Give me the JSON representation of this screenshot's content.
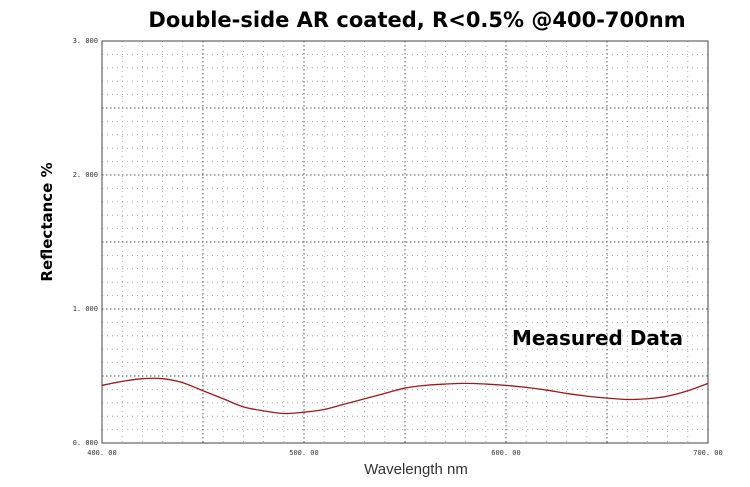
{
  "chart_data": {
    "type": "line",
    "title": "Double-side AR coated, R<0.5% @400-700nm",
    "xlabel": "Wavelength nm",
    "ylabel": "Reflectance %",
    "annotation": "Measured Data",
    "xlim": [
      400,
      700
    ],
    "ylim": [
      0,
      3
    ],
    "xticks": [
      "400. 00",
      "500. 00",
      "600. 00",
      "700. 00"
    ],
    "yticks": [
      "0. 000",
      "1. 000",
      "2. 000",
      "3. 000"
    ],
    "grid": true,
    "line_color": "#a01818",
    "series": [
      {
        "x": [
          400,
          410,
          420,
          430,
          440,
          450,
          460,
          470,
          480,
          490,
          500,
          510,
          520,
          530,
          540,
          550,
          560,
          570,
          580,
          590,
          600,
          610,
          620,
          630,
          640,
          650,
          660,
          670,
          680,
          690,
          700
        ],
        "values": [
          0.43,
          0.46,
          0.48,
          0.48,
          0.45,
          0.39,
          0.33,
          0.27,
          0.24,
          0.22,
          0.23,
          0.25,
          0.29,
          0.33,
          0.37,
          0.41,
          0.43,
          0.44,
          0.445,
          0.44,
          0.43,
          0.415,
          0.395,
          0.37,
          0.35,
          0.335,
          0.325,
          0.33,
          0.35,
          0.39,
          0.445
        ]
      }
    ]
  }
}
